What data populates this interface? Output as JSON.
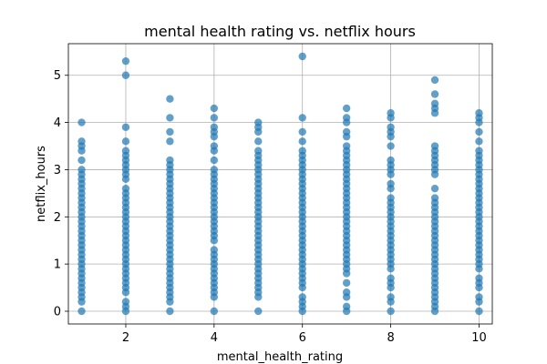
{
  "chart_data": {
    "type": "scatter",
    "title": "mental health rating vs. netflix hours",
    "xlabel": "mental_health_rating",
    "ylabel": "netflix_hours",
    "xlim": [
      0.7,
      10.3
    ],
    "ylim": [
      -0.27,
      5.67
    ],
    "xticks": [
      2,
      4,
      6,
      8,
      10
    ],
    "yticks": [
      0,
      1,
      2,
      3,
      4,
      5
    ],
    "grid": true,
    "marker_color": "#1f77b4",
    "marker_alpha": 0.7,
    "points_by_x": {
      "1": [
        0,
        0.2,
        0.3,
        0.4,
        0.5,
        0.6,
        0.7,
        0.8,
        0.9,
        1.0,
        1.1,
        1.2,
        1.3,
        1.4,
        1.5,
        1.6,
        1.7,
        1.8,
        1.9,
        2.0,
        2.1,
        2.2,
        2.3,
        2.4,
        2.5,
        2.6,
        2.7,
        2.8,
        2.9,
        3.0,
        3.2,
        3.4,
        3.5,
        3.6,
        4.0
      ],
      "2": [
        0,
        0.1,
        0.2,
        0.4,
        0.5,
        0.6,
        0.7,
        0.8,
        0.9,
        1.0,
        1.1,
        1.2,
        1.3,
        1.4,
        1.5,
        1.6,
        1.7,
        1.8,
        1.9,
        2.0,
        2.1,
        2.2,
        2.3,
        2.4,
        2.5,
        2.6,
        2.8,
        2.9,
        3.0,
        3.1,
        3.2,
        3.3,
        3.4,
        3.6,
        3.9,
        5.0,
        5.3
      ],
      "3": [
        0,
        0.2,
        0.3,
        0.4,
        0.5,
        0.6,
        0.7,
        0.8,
        0.9,
        1.0,
        1.1,
        1.2,
        1.3,
        1.4,
        1.5,
        1.6,
        1.7,
        1.8,
        1.9,
        2.0,
        2.1,
        2.2,
        2.3,
        2.4,
        2.5,
        2.6,
        2.7,
        2.8,
        2.9,
        3.0,
        3.1,
        3.2,
        3.6,
        3.8,
        4.1,
        4.5
      ],
      "4": [
        0,
        0.3,
        0.4,
        0.5,
        0.6,
        0.7,
        0.8,
        0.9,
        1.0,
        1.1,
        1.2,
        1.3,
        1.5,
        1.6,
        1.7,
        1.8,
        1.9,
        2.0,
        2.1,
        2.2,
        2.3,
        2.4,
        2.5,
        2.6,
        2.7,
        2.8,
        2.9,
        3.0,
        3.2,
        3.4,
        3.5,
        3.7,
        3.8,
        3.9,
        4.1,
        4.3
      ],
      "5": [
        0,
        0.3,
        0.4,
        0.5,
        0.6,
        0.7,
        0.8,
        0.9,
        1.0,
        1.1,
        1.2,
        1.3,
        1.4,
        1.5,
        1.6,
        1.7,
        1.8,
        1.9,
        2.0,
        2.1,
        2.2,
        2.3,
        2.4,
        2.5,
        2.6,
        2.7,
        2.8,
        2.9,
        3.0,
        3.1,
        3.2,
        3.3,
        3.4,
        3.6,
        3.8,
        3.9,
        4.0
      ],
      "6": [
        0,
        0.1,
        0.2,
        0.3,
        0.5,
        0.6,
        0.7,
        0.8,
        0.9,
        1.0,
        1.1,
        1.2,
        1.3,
        1.4,
        1.5,
        1.6,
        1.7,
        1.8,
        1.9,
        2.0,
        2.1,
        2.2,
        2.3,
        2.4,
        2.5,
        2.6,
        2.7,
        2.8,
        2.9,
        3.0,
        3.1,
        3.2,
        3.3,
        3.4,
        3.6,
        3.8,
        4.1,
        5.4
      ],
      "7": [
        0,
        0.1,
        0.3,
        0.4,
        0.6,
        0.8,
        0.9,
        1.0,
        1.1,
        1.2,
        1.3,
        1.4,
        1.5,
        1.6,
        1.7,
        1.8,
        1.9,
        2.0,
        2.1,
        2.2,
        2.3,
        2.4,
        2.5,
        2.6,
        2.7,
        2.8,
        2.9,
        3.0,
        3.1,
        3.2,
        3.3,
        3.4,
        3.5,
        3.7,
        3.8,
        4.0,
        4.1,
        4.3
      ],
      "8": [
        0,
        0.2,
        0.3,
        0.5,
        0.6,
        0.7,
        0.9,
        1.0,
        1.1,
        1.2,
        1.3,
        1.4,
        1.5,
        1.6,
        1.7,
        1.8,
        1.9,
        2.0,
        2.1,
        2.2,
        2.3,
        2.4,
        2.6,
        2.7,
        2.9,
        3.0,
        3.1,
        3.2,
        3.5,
        3.7,
        3.8,
        3.9,
        4.1,
        4.2
      ],
      "9": [
        0,
        0.1,
        0.2,
        0.3,
        0.4,
        0.5,
        0.6,
        0.7,
        0.8,
        0.9,
        1.0,
        1.1,
        1.2,
        1.3,
        1.4,
        1.5,
        1.6,
        1.7,
        1.8,
        1.9,
        2.0,
        2.1,
        2.2,
        2.3,
        2.4,
        2.6,
        2.9,
        3.0,
        3.1,
        3.2,
        3.3,
        3.4,
        3.5,
        4.2,
        4.3,
        4.4,
        4.6,
        4.9
      ],
      "10": [
        0,
        0.2,
        0.3,
        0.5,
        0.6,
        0.7,
        0.9,
        1.0,
        1.1,
        1.2,
        1.3,
        1.4,
        1.5,
        1.6,
        1.7,
        1.8,
        1.9,
        2.0,
        2.1,
        2.2,
        2.3,
        2.4,
        2.5,
        2.6,
        2.7,
        2.8,
        2.9,
        3.0,
        3.1,
        3.2,
        3.3,
        3.4,
        3.6,
        3.8,
        4.0,
        4.1,
        4.2
      ]
    }
  }
}
